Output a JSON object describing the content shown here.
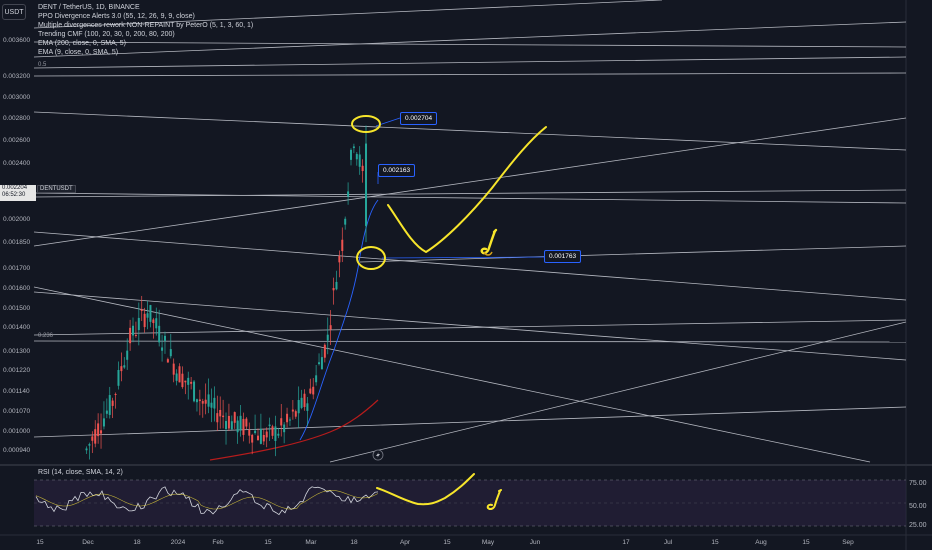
{
  "header": {
    "quote_button": "USDT",
    "title": "DENT / TetherUS, 1D, BINANCE",
    "indicators": [
      "PPO Divergence Alerts 3.0 (55, 12, 26, 9, 9, close)",
      "Multiple divergences rework NON-REPAINT by PeterO (5, 1, 3, 60, 1)",
      "Trending CMF (100, 20, 30, 0, 200, 80, 200)",
      "EMA (200, close, 0, SMA, 5)",
      "EMA (9, close, 0, SMA, 5)"
    ]
  },
  "price_axis": {
    "labels": [
      "0.003600",
      "0.003200",
      "0.003000",
      "0.002800",
      "0.002600",
      "0.002400",
      "0.002000",
      "0.001850",
      "0.001700",
      "0.001600",
      "0.001500",
      "0.001400",
      "0.001300",
      "0.001220",
      "0.001140",
      "0.001070",
      "0.001000",
      "0.000940"
    ],
    "current_price": "0.002204",
    "countdown": "06:52:30",
    "symbol_tag": "DENTUSDT"
  },
  "time_axis": {
    "labels": [
      "15",
      "Dec",
      "18",
      "2024",
      "Feb",
      "15",
      "Mar",
      "18",
      "Apr",
      "15",
      "May",
      "Jun",
      "17",
      "Jul",
      "15",
      "Aug",
      "15",
      "Sep"
    ]
  },
  "callouts": {
    "high": "0.002704",
    "mid": "0.002163",
    "low": "0.001763"
  },
  "fib_labels": {
    "top": "0.5",
    "mid": "0.236"
  },
  "rsi": {
    "legend": "RSI (14, close, SMA, 14, 2)",
    "axis_labels": [
      "75.00",
      "50.00",
      "25.00"
    ]
  },
  "colors": {
    "background": "#131722",
    "bull": "#26a69a",
    "bear": "#ef5350",
    "trendline": "#d1d4dc",
    "annotation": "#f7e52b",
    "callout_border": "#2962ff",
    "rsi_band": "#2a2140",
    "ema200": "#b71c1c"
  },
  "icons": [
    "saxophone-icon",
    "lightning-icon"
  ],
  "chart_data": {
    "type": "candlestick",
    "symbol": "DENT / TetherUS",
    "interval": "1D",
    "exchange": "BINANCE",
    "y_scale": "log",
    "ylim": [
      0.0009,
      0.0038
    ],
    "marked_levels": [
      0.002704,
      0.002163,
      0.001763
    ],
    "last_price": 0.002204,
    "approx_path": [
      {
        "date": "2023-12-01",
        "price": 0.00094
      },
      {
        "date": "2023-12-10",
        "price": 0.0011
      },
      {
        "date": "2023-12-16",
        "price": 0.00135
      },
      {
        "date": "2023-12-22",
        "price": 0.00148
      },
      {
        "date": "2024-01-01",
        "price": 0.00122
      },
      {
        "date": "2024-01-10",
        "price": 0.0011
      },
      {
        "date": "2024-01-20",
        "price": 0.00103
      },
      {
        "date": "2024-02-01",
        "price": 0.00098
      },
      {
        "date": "2024-02-08",
        "price": 0.00102
      },
      {
        "date": "2024-02-16",
        "price": 0.00112
      },
      {
        "date": "2024-02-22",
        "price": 0.00135
      },
      {
        "date": "2024-02-27",
        "price": 0.00185
      },
      {
        "date": "2024-03-02",
        "price": 0.0026
      },
      {
        "date": "2024-03-06",
        "price": 0.0022
      }
    ]
  }
}
